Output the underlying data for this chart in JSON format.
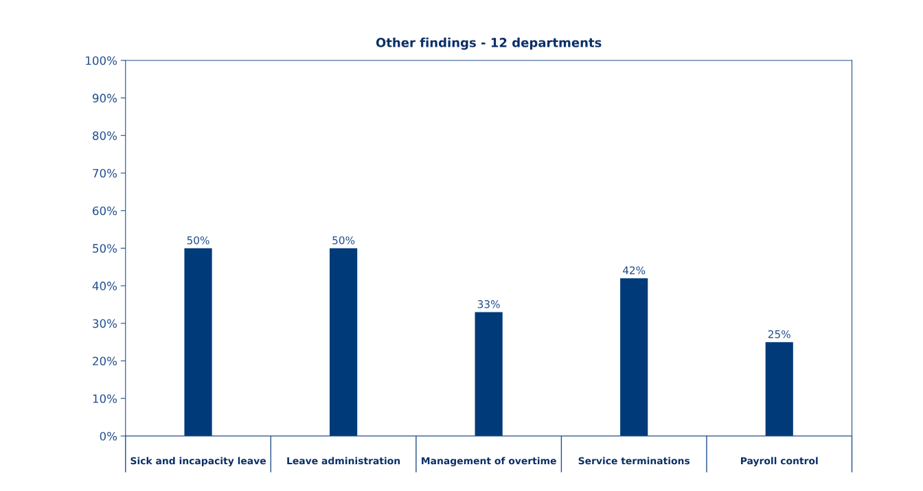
{
  "chart_data": {
    "type": "bar",
    "title": "Other findings - 12 departments",
    "categories": [
      "Sick and incapacity leave",
      "Leave administration",
      "Management of overtime",
      "Service terminations",
      "Payroll control"
    ],
    "values": [
      50,
      50,
      33,
      42,
      25
    ],
    "value_labels": [
      "50%",
      "50%",
      "33%",
      "42%",
      "25%"
    ],
    "color": "#003a78",
    "ylim": [
      0,
      100
    ],
    "yticks": [
      {
        "value": 0,
        "label": "0%"
      },
      {
        "value": 10,
        "label": "10%"
      },
      {
        "value": 20,
        "label": "20%"
      },
      {
        "value": 30,
        "label": "30%"
      },
      {
        "value": 40,
        "label": "40%"
      },
      {
        "value": 50,
        "label": "50%"
      },
      {
        "value": 60,
        "label": "60%"
      },
      {
        "value": 70,
        "label": "70%"
      },
      {
        "value": 80,
        "label": "80%"
      },
      {
        "value": 90,
        "label": "90%"
      },
      {
        "value": 100,
        "label": "100%"
      }
    ],
    "grid": false,
    "legend": false
  }
}
